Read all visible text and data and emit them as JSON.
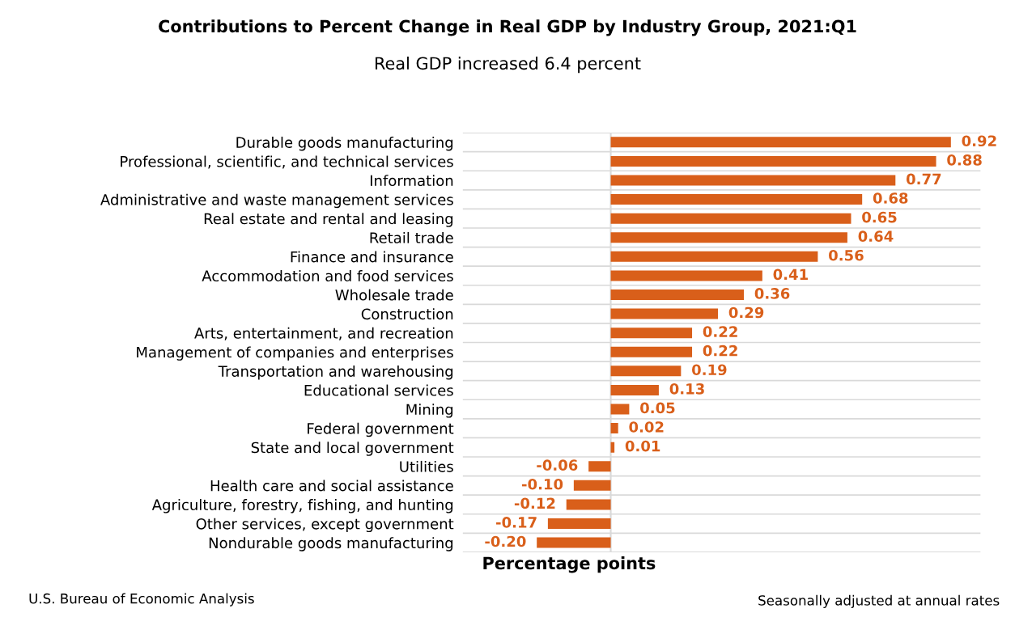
{
  "chart_data": {
    "type": "bar",
    "orientation": "horizontal",
    "title": "Contributions to Percent Change in Real GDP by Industry Group, 2021:Q1",
    "subtitle": "Real GDP increased 6.4 percent",
    "xlabel": "Percentage points",
    "categories": [
      "Durable goods manufacturing",
      "Professional, scientific, and technical services",
      "Information",
      "Administrative and waste management services",
      "Real estate and rental and leasing",
      "Retail trade",
      "Finance and insurance",
      "Accommodation and food services",
      "Wholesale trade",
      "Construction",
      "Arts, entertainment, and recreation",
      "Management of companies and enterprises",
      "Transportation and warehousing",
      "Educational services",
      "Mining",
      "Federal government",
      "State and local government",
      "Utilities",
      "Health care and social assistance",
      "Agriculture, forestry, fishing, and hunting",
      "Other services, except government",
      "Nondurable goods manufacturing"
    ],
    "values": [
      0.92,
      0.88,
      0.77,
      0.68,
      0.65,
      0.64,
      0.56,
      0.41,
      0.36,
      0.29,
      0.22,
      0.22,
      0.19,
      0.13,
      0.05,
      0.02,
      0.01,
      -0.06,
      -0.1,
      -0.12,
      -0.17,
      -0.2
    ],
    "value_labels": [
      "0.92",
      "0.88",
      "0.77",
      "0.68",
      "0.65",
      "0.64",
      "0.56",
      "0.41",
      "0.36",
      "0.29",
      "0.22",
      "0.22",
      "0.19",
      "0.13",
      "0.05",
      "0.02",
      "0.01",
      "-0.06",
      "-0.10",
      "-0.12",
      "-0.17",
      "-0.20"
    ],
    "color": "#d95f1a",
    "xlim": [
      -0.4,
      1.0
    ],
    "grid": "y",
    "tick_labels": "y",
    "annotations": [
      "U.S. Bureau of Economic Analysis",
      "Seasonally adjusted at annual rates"
    ]
  }
}
